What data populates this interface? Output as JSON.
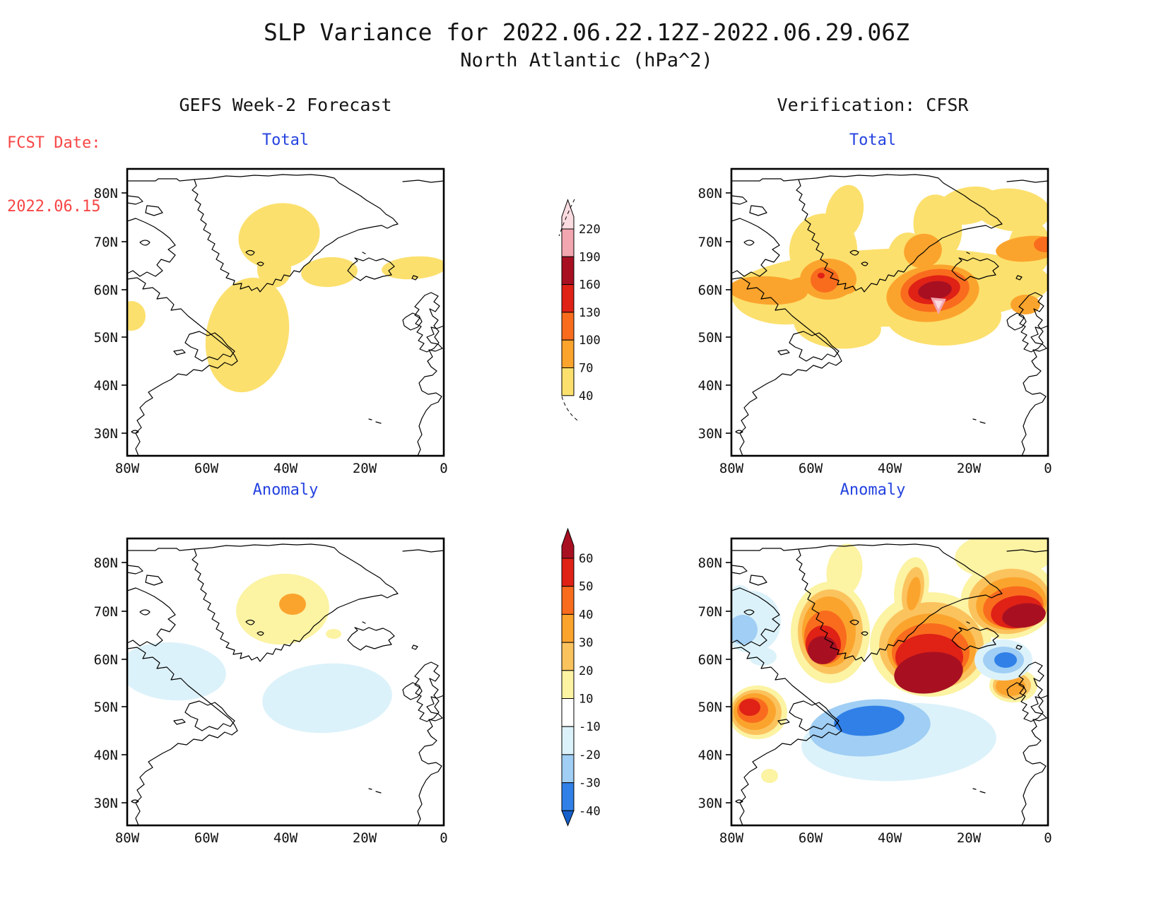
{
  "page": {
    "title1": "SLP Variance for 2022.06.22.12Z-2022.06.29.06Z",
    "title2": "North Atlantic (hPa^2)",
    "fcst_label": "FCST Date:",
    "fcst_date": "2022.06.15",
    "left_header": "GEFS Week-2 Forecast",
    "right_header": "Verification: CFSR"
  },
  "colors": {
    "panel_title_blue": "#2442E0",
    "fcst_red": "#F84545",
    "text": "#151515"
  },
  "panels": {
    "gefs_total": {
      "title": "Total"
    },
    "cfsr_total": {
      "title": "Total"
    },
    "gefs_anom": {
      "title": "Anomaly"
    },
    "cfsr_anom": {
      "title": "Anomaly"
    }
  },
  "axes": {
    "lat_ticks": [
      "80N",
      "70N",
      "60N",
      "50N",
      "40N",
      "30N"
    ],
    "lon_ticks": [
      "80W",
      "60W",
      "40W",
      "20W",
      "0"
    ]
  },
  "palettes": {
    "total": {
      "40": "#FCE06D",
      "70": "#FBA42D",
      "100": "#F96C1E",
      "130": "#DF2116",
      "160": "#A81022",
      "190": "#F2A6B0",
      "220": "#FADBE0"
    },
    "anom": {
      "10": "#FCF3A3",
      "20": "#FBC35E",
      "30": "#FBA42D",
      "40": "#F96C1E",
      "50": "#DF2116",
      "60": "#A81022",
      "-10": "#DCF2FA",
      "-20": "#A0CEF4",
      "-30": "#3080E8",
      "-40": "#1560CB"
    }
  },
  "colorbars": {
    "total": {
      "labels": [
        "220",
        "190",
        "160",
        "130",
        "100",
        "70",
        "40"
      ],
      "cells": [
        "#FADBE0",
        "#F2A6B0",
        "#A81022",
        "#DF2116",
        "#F96C1E",
        "#FBA42D",
        "#FCE06D"
      ]
    },
    "anomaly": {
      "labels": [
        "60",
        "50",
        "40",
        "30",
        "20",
        "10",
        "-10",
        "-20",
        "-30",
        "-40"
      ],
      "cells": [
        "#A81022",
        "#DF2116",
        "#F96C1E",
        "#FBA42D",
        "#FBC35E",
        "#FCF3A3",
        "#FFFFFF",
        "#DCF2FA",
        "#A0CEF4",
        "#3080E8",
        "#1560CB"
      ]
    }
  },
  "chart_data": [
    {
      "type": "heatmap",
      "subtype": "filled-contour-map",
      "panel": "GEFS Week-2 Forecast - Total",
      "units": "hPa^2",
      "region": "North Atlantic",
      "lon_range": [
        "80W",
        "0"
      ],
      "lat_range": [
        "25N",
        "85N"
      ],
      "contour_levels": [
        40,
        70,
        100,
        130,
        160,
        190,
        220
      ],
      "features": [
        {
          "area": "central Greenland 35-55W 62-78N",
          "value": "40-70"
        },
        {
          "area": "Labrador Sea 50-65W 50-62N",
          "value": "40-70"
        },
        {
          "area": "Iceland vicinity 20-35W 60-66N",
          "value": "40-70"
        },
        {
          "area": "NE Atlantic 0-15W 60-66N",
          "value": "40-70"
        },
        {
          "area": "west edge 80W 51-57N",
          "value": "40-70"
        }
      ]
    },
    {
      "type": "heatmap",
      "subtype": "filled-contour-map",
      "panel": "Verification CFSR - Total",
      "units": "hPa^2",
      "region": "North Atlantic",
      "lon_range": [
        "80W",
        "0"
      ],
      "lat_range": [
        "25N",
        "85N"
      ],
      "contour_levels": [
        40,
        70,
        100,
        130,
        160,
        190,
        220
      ],
      "features": [
        {
          "area": "primary maximum near 28W 56N",
          "value": ">190 (pink core >220)"
        },
        {
          "area": "secondary maximum near 57W 62N",
          "value": "100-130"
        },
        {
          "area": "broad band 48N-75N across basin",
          "value": "40-100"
        },
        {
          "area": "NE corner near 5W 70N",
          "value": "70-100"
        }
      ]
    },
    {
      "type": "heatmap",
      "subtype": "filled-contour-map",
      "panel": "GEFS Week-2 Forecast - Anomaly",
      "units": "hPa^2",
      "region": "North Atlantic",
      "lon_range": [
        "80W",
        "0"
      ],
      "lat_range": [
        "25N",
        "85N"
      ],
      "contour_levels": [
        -40,
        -30,
        -20,
        -10,
        10,
        20,
        30,
        40,
        50,
        60
      ],
      "features": [
        {
          "area": "south Greenland 35-55W 62-78N",
          "value": "+10 to +20, core +30 near 44W 72N"
        },
        {
          "area": "small spot near 28W 66N",
          "value": "+10"
        },
        {
          "area": "Labrador / Davis Strait 58-80W 52-62N",
          "value": "-10"
        },
        {
          "area": "central Atlantic 25-45W 45-53N",
          "value": "-10"
        }
      ]
    },
    {
      "type": "heatmap",
      "subtype": "filled-contour-map",
      "panel": "Verification CFSR - Anomaly",
      "units": "hPa^2",
      "region": "North Atlantic",
      "lon_range": [
        "80W",
        "0"
      ],
      "lat_range": [
        "25N",
        "85N"
      ],
      "contour_levels": [
        -40,
        -30,
        -20,
        -10,
        10,
        20,
        30,
        40,
        50,
        60
      ],
      "features": [
        {
          "area": "west Greenland / Davis Strait near 57W 61N",
          "value": ">+60"
        },
        {
          "area": "central Atlantic near 30W 57N",
          "value": ">+60 (large core)"
        },
        {
          "area": "NE corner near 5W 69N",
          "value": ">+60"
        },
        {
          "area": "west edge near 75W 53N",
          "value": "+40 to +50"
        },
        {
          "area": "south of Greenland near 40W 47N",
          "value": "-30"
        },
        {
          "area": "NE Atlantic near 13W 59N",
          "value": "-30"
        },
        {
          "area": "Baffin Island area",
          "value": "-10 to -20"
        },
        {
          "area": "Ireland vicinity",
          "value": "+30"
        }
      ]
    }
  ]
}
